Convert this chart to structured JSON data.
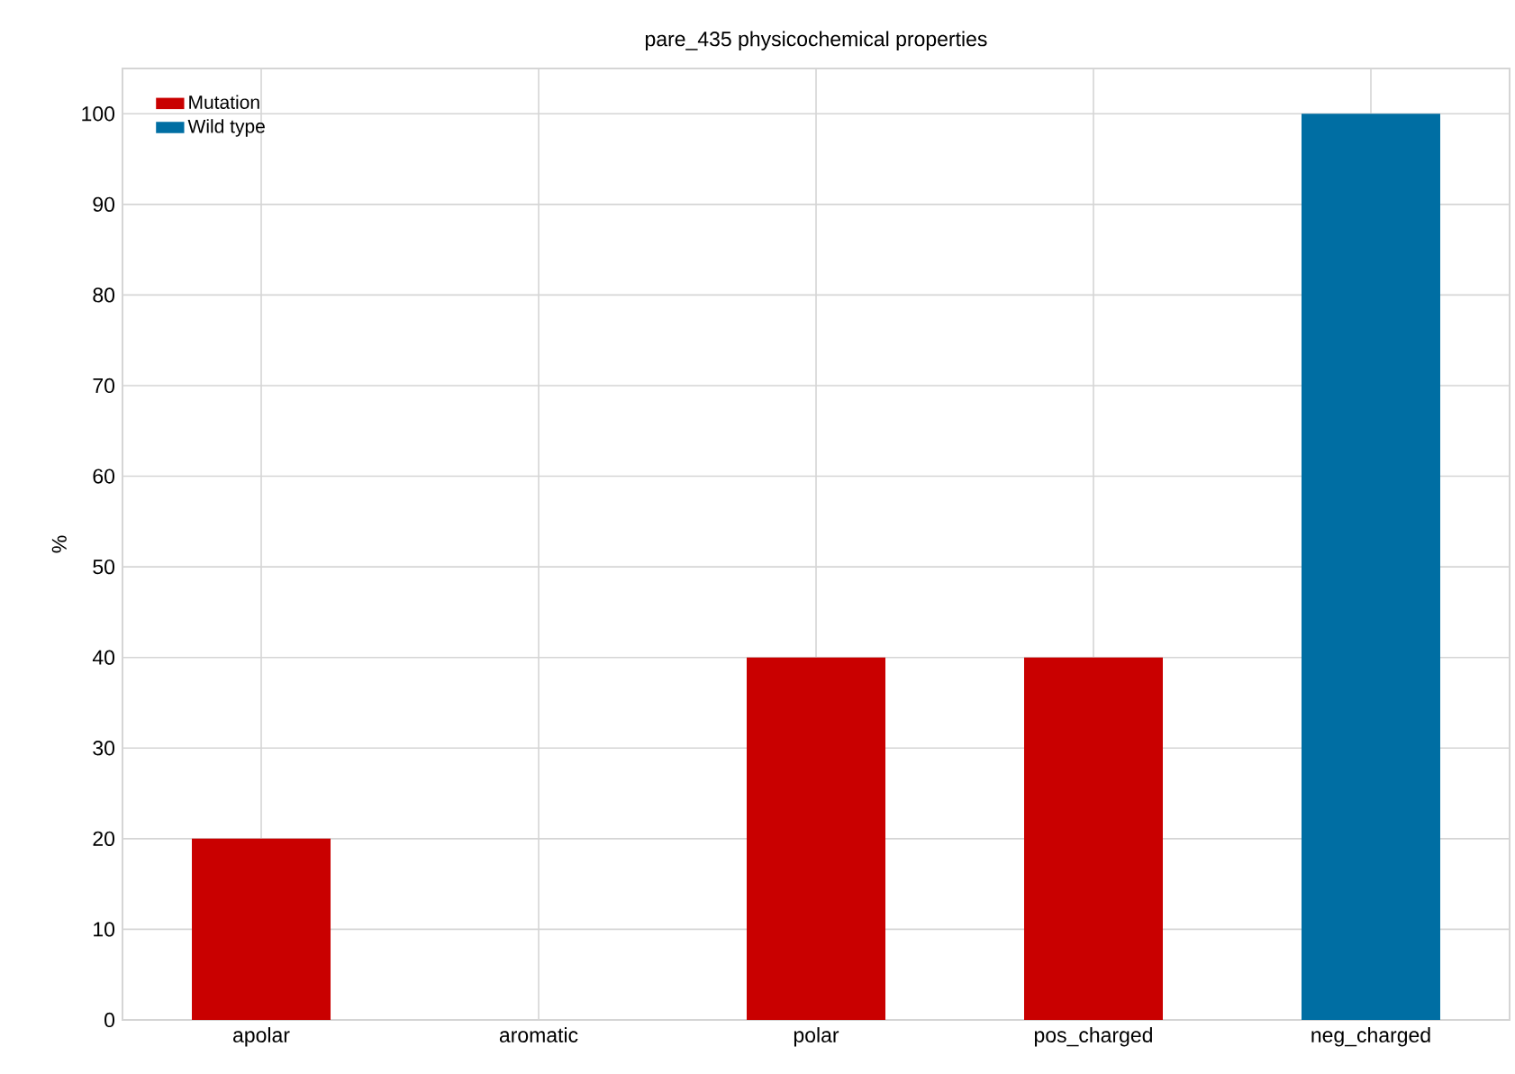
{
  "chart_data": {
    "type": "bar",
    "title": "pare_435 physicochemical properties",
    "ylabel": "%",
    "categories": [
      "apolar",
      "aromatic",
      "polar",
      "pos_charged",
      "neg_charged"
    ],
    "stacked": true,
    "series": [
      {
        "name": "Mutation",
        "color": "#c90000",
        "values": [
          20,
          0,
          40,
          40,
          0
        ]
      },
      {
        "name": "Wild type",
        "color": "#006ea3",
        "values": [
          0,
          0,
          0,
          0,
          100
        ]
      }
    ],
    "ylim": [
      0,
      105
    ],
    "yticks": [
      0,
      10,
      20,
      30,
      40,
      50,
      60,
      70,
      80,
      90,
      100
    ],
    "grid": true,
    "legend": "top left"
  }
}
